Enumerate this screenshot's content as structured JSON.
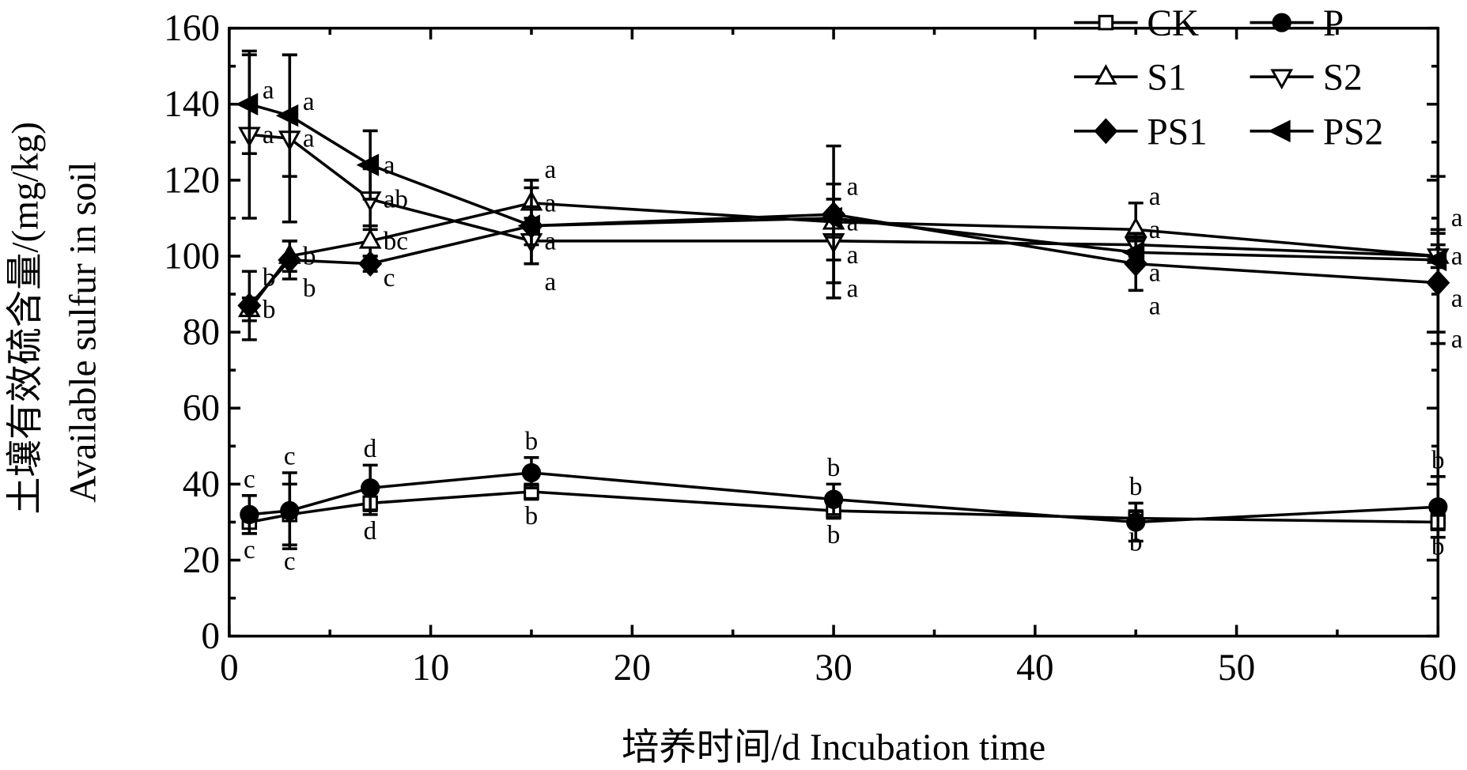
{
  "chart_data": {
    "type": "line",
    "xlabel": "培养时间/d  Incubation time",
    "ylabel_cn": "土壤有效硫含量/(mg/kg)",
    "ylabel_en": "Available sulfur in soil",
    "xlim": [
      0,
      60
    ],
    "ylim": [
      0,
      160
    ],
    "xticks": [
      0,
      10,
      20,
      30,
      40,
      50,
      60
    ],
    "yticks": [
      0,
      20,
      40,
      60,
      80,
      100,
      120,
      140,
      160
    ],
    "grid": false,
    "legend_position": "top-right",
    "x": [
      1,
      3,
      7,
      15,
      30,
      45,
      60
    ],
    "series": [
      {
        "name": "CK",
        "marker": "square-open",
        "values": [
          30,
          32,
          35,
          38,
          33,
          31,
          30
        ],
        "errors": [
          3,
          8,
          3,
          2,
          2,
          2,
          2
        ],
        "letters": [
          "c",
          "c",
          "d",
          "b",
          "b",
          "b",
          "b"
        ]
      },
      {
        "name": "P",
        "marker": "circle-filled",
        "values": [
          32,
          33,
          39,
          43,
          36,
          30,
          34
        ],
        "errors": [
          5,
          10,
          6,
          4,
          4,
          5,
          8
        ],
        "letters": [
          "c",
          "c",
          "d",
          "b",
          "b",
          "b",
          "b"
        ]
      },
      {
        "name": "S1",
        "marker": "triangle-up-open",
        "values": [
          86,
          100,
          104,
          114,
          109,
          107,
          100
        ],
        "errors": [
          3,
          4,
          4,
          6,
          10,
          7,
          7
        ],
        "letters": [
          "b",
          "b",
          "bc",
          "a",
          "a",
          "a",
          "a"
        ]
      },
      {
        "name": "S2",
        "marker": "triangle-down-open",
        "values": [
          132,
          131,
          115,
          104,
          104,
          103,
          100
        ],
        "errors": [
          22,
          22,
          8,
          6,
          15,
          3,
          3
        ],
        "letters": [
          "a",
          "a",
          "ab",
          "a",
          "a",
          "a",
          "a"
        ]
      },
      {
        "name": "PS1",
        "marker": "diamond-filled",
        "values": [
          87,
          99,
          98,
          108,
          111,
          98,
          93
        ],
        "errors": [
          9,
          5,
          2,
          10,
          18,
          7,
          13
        ],
        "letters": [
          "b",
          "b",
          "c",
          "a",
          "a",
          "a",
          "a"
        ]
      },
      {
        "name": "PS2",
        "marker": "triangle-left-filled",
        "values": [
          140,
          137,
          124,
          108,
          110,
          101,
          99
        ],
        "errors": [
          13,
          16,
          9,
          5,
          5,
          3,
          22
        ],
        "letters": [
          "a",
          "a",
          "a",
          "a",
          "a",
          "a",
          "a"
        ]
      }
    ]
  }
}
